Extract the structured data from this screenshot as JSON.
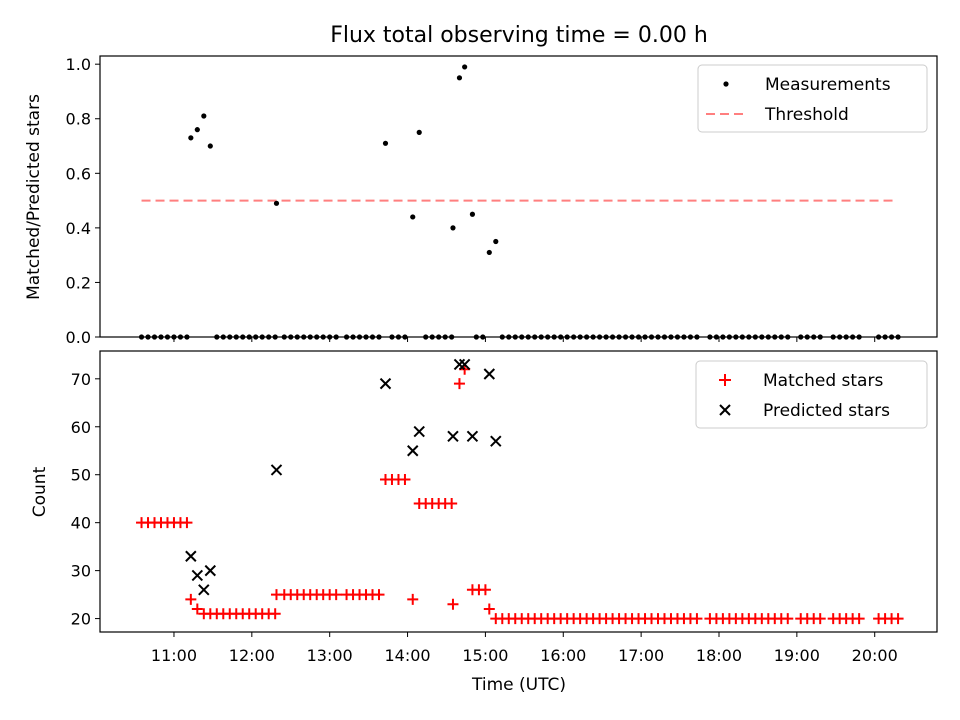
{
  "chart_data": {
    "title": "Flux total observing time = 0.00 h",
    "xlabel": "Time (UTC)",
    "x_ticks": [
      "11:00",
      "12:00",
      "13:00",
      "14:00",
      "15:00",
      "16:00",
      "17:00",
      "18:00",
      "19:00",
      "20:00"
    ],
    "colors": {
      "matched": "#ff0000",
      "predicted": "#000000",
      "threshold": "#ff7f7f",
      "measurements": "#000000"
    },
    "panels": [
      {
        "type": "scatter",
        "ylabel": "Matched/Predicted stars",
        "ylim": [
          0,
          1.03
        ],
        "yticks": [
          "0.0",
          "0.2",
          "0.4",
          "0.6",
          "0.8",
          "1.0"
        ],
        "legend_position": "top-right",
        "legend": [
          "Measurements",
          "Threshold"
        ],
        "threshold": {
          "value": 0.5,
          "x_range": [
            "10:35",
            "20:15"
          ]
        },
        "measurements": [
          [
            "10:35",
            0
          ],
          [
            "10:40",
            0
          ],
          [
            "10:45",
            0
          ],
          [
            "10:50",
            0
          ],
          [
            "10:55",
            0
          ],
          [
            "11:00",
            0
          ],
          [
            "11:05",
            0
          ],
          [
            "11:10",
            0
          ],
          [
            "11:13",
            0.73
          ],
          [
            "11:18",
            0.76
          ],
          [
            "11:23",
            0.81
          ],
          [
            "11:28",
            0.7
          ],
          [
            "11:33",
            0
          ],
          [
            "11:38",
            0
          ],
          [
            "11:43",
            0
          ],
          [
            "11:48",
            0
          ],
          [
            "11:53",
            0
          ],
          [
            "11:58",
            0
          ],
          [
            "12:03",
            0
          ],
          [
            "12:08",
            0
          ],
          [
            "12:13",
            0
          ],
          [
            "12:18",
            0
          ],
          [
            "12:19",
            0.49
          ],
          [
            "12:25",
            0
          ],
          [
            "12:30",
            0
          ],
          [
            "12:35",
            0
          ],
          [
            "12:40",
            0
          ],
          [
            "12:45",
            0
          ],
          [
            "12:50",
            0
          ],
          [
            "12:55",
            0
          ],
          [
            "13:00",
            0
          ],
          [
            "13:05",
            0
          ],
          [
            "13:13",
            0
          ],
          [
            "13:18",
            0
          ],
          [
            "13:23",
            0
          ],
          [
            "13:28",
            0
          ],
          [
            "13:33",
            0
          ],
          [
            "13:38",
            0
          ],
          [
            "13:43",
            0.71
          ],
          [
            "13:48",
            0
          ],
          [
            "13:53",
            0
          ],
          [
            "13:58",
            0
          ],
          [
            "14:04",
            0.44
          ],
          [
            "14:09",
            0.75
          ],
          [
            "14:14",
            0
          ],
          [
            "14:19",
            0
          ],
          [
            "14:24",
            0
          ],
          [
            "14:29",
            0
          ],
          [
            "14:34",
            0
          ],
          [
            "14:35",
            0.4
          ],
          [
            "14:40",
            0.95
          ],
          [
            "14:44",
            0.99
          ],
          [
            "14:50",
            0.45
          ],
          [
            "14:53",
            0
          ],
          [
            "14:58",
            0
          ],
          [
            "15:03",
            0.31
          ],
          [
            "15:08",
            0.35
          ],
          [
            "15:13",
            0
          ],
          [
            "15:18",
            0
          ],
          [
            "15:23",
            0
          ],
          [
            "15:28",
            0
          ],
          [
            "15:33",
            0
          ],
          [
            "15:38",
            0
          ],
          [
            "15:43",
            0
          ],
          [
            "15:48",
            0
          ],
          [
            "15:53",
            0
          ],
          [
            "15:58",
            0
          ],
          [
            "16:03",
            0
          ],
          [
            "16:08",
            0
          ],
          [
            "16:13",
            0
          ],
          [
            "16:18",
            0
          ],
          [
            "16:23",
            0
          ],
          [
            "16:28",
            0
          ],
          [
            "16:33",
            0
          ],
          [
            "16:38",
            0
          ],
          [
            "16:43",
            0
          ],
          [
            "16:48",
            0
          ],
          [
            "16:53",
            0
          ],
          [
            "16:58",
            0
          ],
          [
            "17:03",
            0
          ],
          [
            "17:08",
            0
          ],
          [
            "17:13",
            0
          ],
          [
            "17:18",
            0
          ],
          [
            "17:23",
            0
          ],
          [
            "17:28",
            0
          ],
          [
            "17:33",
            0
          ],
          [
            "17:38",
            0
          ],
          [
            "17:43",
            0
          ],
          [
            "17:53",
            0
          ],
          [
            "17:58",
            0
          ],
          [
            "18:03",
            0
          ],
          [
            "18:08",
            0
          ],
          [
            "18:13",
            0
          ],
          [
            "18:18",
            0
          ],
          [
            "18:23",
            0
          ],
          [
            "18:28",
            0
          ],
          [
            "18:33",
            0
          ],
          [
            "18:38",
            0
          ],
          [
            "18:43",
            0
          ],
          [
            "18:48",
            0
          ],
          [
            "18:53",
            0
          ],
          [
            "19:03",
            0
          ],
          [
            "19:08",
            0
          ],
          [
            "19:13",
            0
          ],
          [
            "19:18",
            0
          ],
          [
            "19:28",
            0
          ],
          [
            "19:33",
            0
          ],
          [
            "19:38",
            0
          ],
          [
            "19:43",
            0
          ],
          [
            "19:48",
            0
          ],
          [
            "20:03",
            0
          ],
          [
            "20:08",
            0
          ],
          [
            "20:13",
            0
          ],
          [
            "20:18",
            0
          ]
        ]
      },
      {
        "type": "scatter",
        "ylabel": "Count",
        "ylim": [
          17.2,
          75.8
        ],
        "yticks": [
          "20",
          "30",
          "40",
          "50",
          "60",
          "70"
        ],
        "legend_position": "top-right",
        "legend": [
          "Matched stars",
          "Predicted stars"
        ],
        "matched": [
          [
            "10:35",
            40
          ],
          [
            "10:40",
            40
          ],
          [
            "10:45",
            40
          ],
          [
            "10:50",
            40
          ],
          [
            "10:55",
            40
          ],
          [
            "11:00",
            40
          ],
          [
            "11:05",
            40
          ],
          [
            "11:10",
            40
          ],
          [
            "11:13",
            24
          ],
          [
            "11:18",
            22
          ],
          [
            "11:23",
            21
          ],
          [
            "11:28",
            21
          ],
          [
            "11:33",
            21
          ],
          [
            "11:38",
            21
          ],
          [
            "11:43",
            21
          ],
          [
            "11:48",
            21
          ],
          [
            "11:53",
            21
          ],
          [
            "11:58",
            21
          ],
          [
            "12:03",
            21
          ],
          [
            "12:08",
            21
          ],
          [
            "12:13",
            21
          ],
          [
            "12:18",
            21
          ],
          [
            "12:19",
            25
          ],
          [
            "12:25",
            25
          ],
          [
            "12:30",
            25
          ],
          [
            "12:35",
            25
          ],
          [
            "12:40",
            25
          ],
          [
            "12:45",
            25
          ],
          [
            "12:50",
            25
          ],
          [
            "12:55",
            25
          ],
          [
            "13:00",
            25
          ],
          [
            "13:05",
            25
          ],
          [
            "13:13",
            25
          ],
          [
            "13:18",
            25
          ],
          [
            "13:23",
            25
          ],
          [
            "13:28",
            25
          ],
          [
            "13:33",
            25
          ],
          [
            "13:38",
            25
          ],
          [
            "13:43",
            49
          ],
          [
            "13:48",
            49
          ],
          [
            "13:53",
            49
          ],
          [
            "13:58",
            49
          ],
          [
            "14:04",
            24
          ],
          [
            "14:09",
            44
          ],
          [
            "14:14",
            44
          ],
          [
            "14:19",
            44
          ],
          [
            "14:24",
            44
          ],
          [
            "14:29",
            44
          ],
          [
            "14:34",
            44
          ],
          [
            "14:35",
            23
          ],
          [
            "14:40",
            69
          ],
          [
            "14:44",
            72
          ],
          [
            "14:50",
            26
          ],
          [
            "14:55",
            26
          ],
          [
            "15:00",
            26
          ],
          [
            "15:03",
            22
          ],
          [
            "15:08",
            20
          ],
          [
            "15:13",
            20
          ],
          [
            "15:18",
            20
          ],
          [
            "15:23",
            20
          ],
          [
            "15:28",
            20
          ],
          [
            "15:33",
            20
          ],
          [
            "15:38",
            20
          ],
          [
            "15:43",
            20
          ],
          [
            "15:48",
            20
          ],
          [
            "15:53",
            20
          ],
          [
            "15:58",
            20
          ],
          [
            "16:03",
            20
          ],
          [
            "16:08",
            20
          ],
          [
            "16:13",
            20
          ],
          [
            "16:18",
            20
          ],
          [
            "16:23",
            20
          ],
          [
            "16:28",
            20
          ],
          [
            "16:33",
            20
          ],
          [
            "16:38",
            20
          ],
          [
            "16:43",
            20
          ],
          [
            "16:48",
            20
          ],
          [
            "16:53",
            20
          ],
          [
            "16:58",
            20
          ],
          [
            "17:03",
            20
          ],
          [
            "17:08",
            20
          ],
          [
            "17:13",
            20
          ],
          [
            "17:18",
            20
          ],
          [
            "17:23",
            20
          ],
          [
            "17:28",
            20
          ],
          [
            "17:33",
            20
          ],
          [
            "17:38",
            20
          ],
          [
            "17:43",
            20
          ],
          [
            "17:53",
            20
          ],
          [
            "17:58",
            20
          ],
          [
            "18:03",
            20
          ],
          [
            "18:08",
            20
          ],
          [
            "18:13",
            20
          ],
          [
            "18:18",
            20
          ],
          [
            "18:23",
            20
          ],
          [
            "18:28",
            20
          ],
          [
            "18:33",
            20
          ],
          [
            "18:38",
            20
          ],
          [
            "18:43",
            20
          ],
          [
            "18:48",
            20
          ],
          [
            "18:53",
            20
          ],
          [
            "19:03",
            20
          ],
          [
            "19:08",
            20
          ],
          [
            "19:13",
            20
          ],
          [
            "19:18",
            20
          ],
          [
            "19:28",
            20
          ],
          [
            "19:33",
            20
          ],
          [
            "19:38",
            20
          ],
          [
            "19:43",
            20
          ],
          [
            "19:48",
            20
          ],
          [
            "20:03",
            20
          ],
          [
            "20:08",
            20
          ],
          [
            "20:13",
            20
          ],
          [
            "20:18",
            20
          ]
        ],
        "predicted": [
          [
            "11:13",
            33
          ],
          [
            "11:18",
            29
          ],
          [
            "11:23",
            26
          ],
          [
            "11:28",
            30
          ],
          [
            "12:19",
            51
          ],
          [
            "13:43",
            69
          ],
          [
            "14:04",
            55
          ],
          [
            "14:09",
            59
          ],
          [
            "14:35",
            58
          ],
          [
            "14:40",
            73
          ],
          [
            "14:44",
            73
          ],
          [
            "14:50",
            58
          ],
          [
            "15:03",
            71
          ],
          [
            "15:08",
            57
          ]
        ]
      }
    ]
  }
}
